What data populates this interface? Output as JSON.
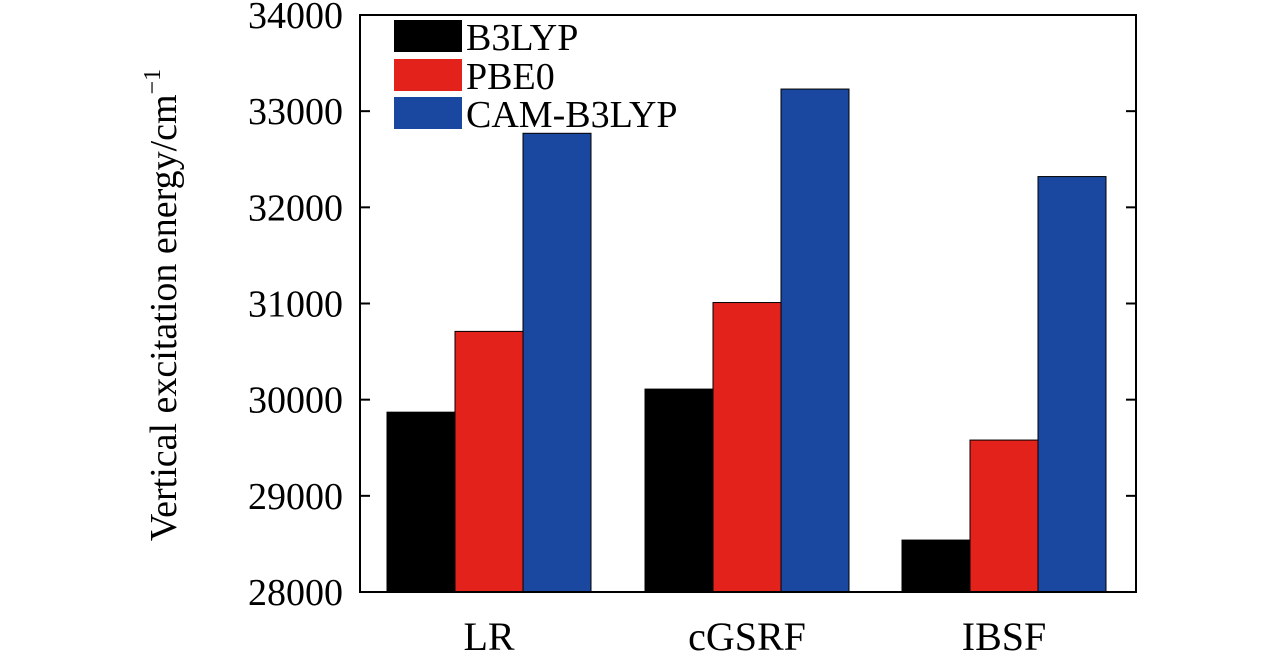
{
  "chart_data": {
    "type": "bar",
    "title": "",
    "xlabel": "",
    "ylabel": "Vertical excitation energy/cm",
    "ylabel_superscript": "−1",
    "ylim": [
      28000,
      34000
    ],
    "yticks": [
      28000,
      29000,
      30000,
      31000,
      32000,
      33000,
      34000
    ],
    "ytick_labels": [
      "28000",
      "29000",
      "30000",
      "31000",
      "32000",
      "33000",
      "34000"
    ],
    "grid": false,
    "legend_position": "top-left",
    "categories": [
      "LR",
      "cGSRF",
      "IBSF"
    ],
    "series": [
      {
        "name": "B3LYP",
        "color": "#000000",
        "values": [
          29870,
          30110,
          28540
        ]
      },
      {
        "name": "PBE0",
        "color": "#e3221b",
        "values": [
          30710,
          31010,
          29580
        ]
      },
      {
        "name": "CAM-B3LYP",
        "color": "#1a48a0",
        "values": [
          32770,
          33230,
          32320
        ]
      }
    ]
  }
}
